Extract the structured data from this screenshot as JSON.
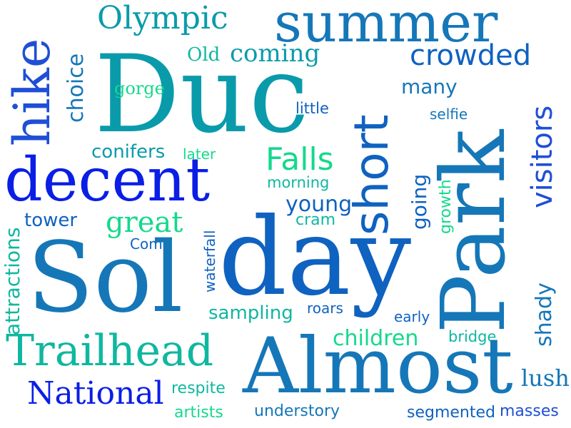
{
  "palette": {
    "deep_blue": "#0a1ee6",
    "royal_blue": "#1f4fd6",
    "blue": "#0f62c0",
    "steel_blue": "#1577b8",
    "teal": "#0a9bab",
    "mint": "#14d98c",
    "sea_green": "#0fb7a0"
  },
  "words": [
    {
      "id": "summer",
      "text": "summer"
    },
    {
      "id": "olympic",
      "text": "Olympic"
    },
    {
      "id": "hike",
      "text": "hike"
    },
    {
      "id": "choice",
      "text": "choice"
    },
    {
      "id": "old",
      "text": "Old"
    },
    {
      "id": "coming",
      "text": "coming"
    },
    {
      "id": "crowded",
      "text": "crowded"
    },
    {
      "id": "duc",
      "text": "Duc"
    },
    {
      "id": "gorge",
      "text": "gorge"
    },
    {
      "id": "little",
      "text": "little"
    },
    {
      "id": "many",
      "text": "many"
    },
    {
      "id": "selfie",
      "text": "selfie"
    },
    {
      "id": "visitors",
      "text": "visitors"
    },
    {
      "id": "short",
      "text": "short"
    },
    {
      "id": "park",
      "text": "Park"
    },
    {
      "id": "conifers",
      "text": "conifers"
    },
    {
      "id": "later",
      "text": "later"
    },
    {
      "id": "falls",
      "text": "Falls"
    },
    {
      "id": "decent",
      "text": "decent"
    },
    {
      "id": "morning",
      "text": "morning"
    },
    {
      "id": "young",
      "text": "young"
    },
    {
      "id": "going",
      "text": "going"
    },
    {
      "id": "growth",
      "text": "growth"
    },
    {
      "id": "tower",
      "text": "tower"
    },
    {
      "id": "great",
      "text": "great"
    },
    {
      "id": "cram",
      "text": "cram"
    },
    {
      "id": "attractions",
      "text": "attractions"
    },
    {
      "id": "come",
      "text": "Come"
    },
    {
      "id": "waterfall",
      "text": "waterfall"
    },
    {
      "id": "sol",
      "text": "Sol"
    },
    {
      "id": "day",
      "text": "day"
    },
    {
      "id": "shady",
      "text": "shady"
    },
    {
      "id": "sampling",
      "text": "sampling"
    },
    {
      "id": "roars",
      "text": "roars"
    },
    {
      "id": "early",
      "text": "early"
    },
    {
      "id": "children",
      "text": "children"
    },
    {
      "id": "bridge",
      "text": "bridge"
    },
    {
      "id": "trailhead",
      "text": "Trailhead"
    },
    {
      "id": "almost",
      "text": "Almost"
    },
    {
      "id": "national",
      "text": "National"
    },
    {
      "id": "respite",
      "text": "respite"
    },
    {
      "id": "lush",
      "text": "lush"
    },
    {
      "id": "artists",
      "text": "artists"
    },
    {
      "id": "understory",
      "text": "understory"
    },
    {
      "id": "segmented",
      "text": "segmented"
    },
    {
      "id": "masses",
      "text": "masses"
    }
  ]
}
